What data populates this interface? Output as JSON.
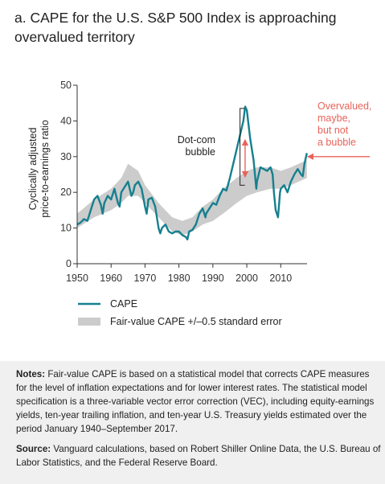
{
  "title": "a. CAPE for the U.S. S&P 500 Index is approaching overvalued territory",
  "notes_label": "Notes:",
  "notes_text": "Fair-value CAPE is based on a statistical model that corrects CAPE measures for the level of inflation expectations and for lower interest rates. The statistical model specification is a three-variable vector error correction (VEC), including equity-earnings yields, ten-year trailing inflation, and ten-year U.S. Treasury yields estimated over the period January 1940–September 2017.",
  "source_label": "Source:",
  "source_text": "Vanguard calculations, based on Robert Shiller Online Data, the U.S. Bureau of Labor Statistics, and the Federal Reserve Board.",
  "colors": {
    "cape_line": "#15808f",
    "band": "#cccccc",
    "highlight": "#e8635a",
    "axis": "#333333"
  },
  "chart_data": {
    "type": "line",
    "ylabel_line1": "Cyclically adjusted",
    "ylabel_line2": "price-to-earnings ratio",
    "xlabel": "",
    "xlim": [
      1950,
      2017.75
    ],
    "ylim": [
      0,
      50
    ],
    "xticks": [
      1950,
      1960,
      1970,
      1980,
      1990,
      2000,
      2010
    ],
    "yticks": [
      0,
      10,
      20,
      30,
      40,
      50
    ],
    "grid": false,
    "legend_placement": "bottom-left",
    "legend": [
      "CAPE",
      "Fair-value CAPE +/–0.5 standard error"
    ],
    "annotations": {
      "dotcom_line1": "Dot-com",
      "dotcom_line2": "bubble",
      "overvalued_lines": [
        "Overvalued,",
        "maybe,",
        "but not",
        "a bubble"
      ]
    },
    "series": [
      {
        "name": "CAPE",
        "x": [
          1950,
          1951,
          1952,
          1953,
          1954,
          1955,
          1956,
          1957,
          1957.5,
          1958,
          1959,
          1960,
          1961,
          1962,
          1962.5,
          1963,
          1964,
          1965,
          1966,
          1966.5,
          1967,
          1968,
          1969,
          1970,
          1970.5,
          1971,
          1972,
          1973,
          1974,
          1974.5,
          1975,
          1976,
          1977,
          1978,
          1979,
          1980,
          1981,
          1982,
          1982.5,
          1983,
          1984,
          1985,
          1986,
          1987,
          1987.8,
          1988,
          1989,
          1990,
          1991,
          1992,
          1993,
          1994,
          1995,
          1996,
          1997,
          1998,
          1999,
          1999.5,
          2000,
          2001,
          2002,
          2002.8,
          2003,
          2004,
          2005,
          2006,
          2007,
          2007.6,
          2008,
          2008.5,
          2009.2,
          2009.8,
          2010,
          2011,
          2012,
          2013,
          2014,
          2015,
          2016,
          2016.5,
          2017,
          2017.7
        ],
        "y": [
          11,
          11.5,
          12.5,
          12,
          15,
          18,
          19,
          16.5,
          14,
          17,
          19,
          18,
          21,
          17,
          16,
          20,
          21.5,
          23,
          19,
          20,
          22,
          23,
          21,
          16,
          14,
          18,
          18.5,
          16,
          10,
          8.5,
          10,
          11,
          9,
          8.5,
          9,
          9,
          8,
          7.5,
          6.8,
          9,
          9.5,
          11,
          14,
          15.5,
          13,
          14,
          15.5,
          17,
          16.5,
          19,
          21,
          20.5,
          24,
          28,
          32,
          36,
          40,
          44,
          43,
          35,
          29,
          21,
          23,
          27,
          26.5,
          26,
          27,
          25,
          20,
          15,
          13,
          20,
          21,
          22,
          20,
          23,
          25,
          26.5,
          25,
          24.5,
          28,
          31
        ]
      }
    ],
    "band": {
      "name": "Fair-value CAPE +/–0.5 standard error",
      "x": [
        1950,
        1955,
        1960,
        1963,
        1965,
        1968,
        1970,
        1974,
        1978,
        1981,
        1984,
        1987,
        1990,
        1993,
        1997,
        2000,
        2003,
        2007,
        2010,
        2013,
        2017.7
      ],
      "low": [
        10,
        13,
        15,
        17,
        19,
        19,
        17,
        13,
        9,
        8,
        9,
        11,
        12,
        14,
        17,
        19,
        20,
        21,
        21,
        22,
        24
      ],
      "high": [
        14,
        18,
        21,
        24,
        28,
        26,
        22,
        17,
        13,
        12,
        13,
        16,
        18,
        21,
        24,
        26,
        27,
        27,
        26,
        27,
        29
      ]
    }
  }
}
